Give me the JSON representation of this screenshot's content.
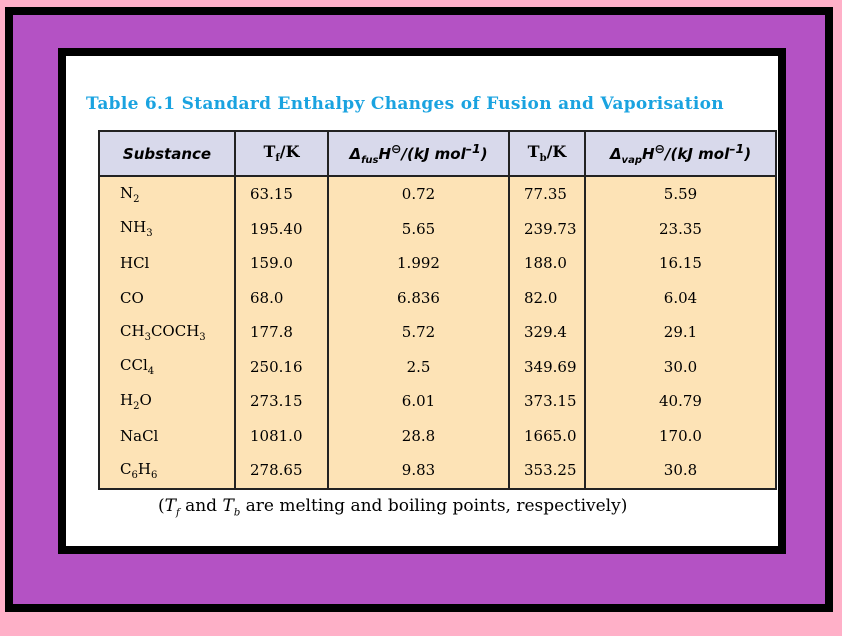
{
  "title": "Table 6.1  Standard Enthalpy Changes of Fusion and Vaporisation",
  "headers": [
    [
      {
        "t": "Substance"
      }
    ],
    [
      {
        "t": "T"
      },
      {
        "t": "f",
        "s": 1
      },
      {
        "t": "/K"
      }
    ],
    [
      {
        "t": "Δ"
      },
      {
        "t": "fus",
        "s": 1
      },
      {
        "t": "H"
      },
      {
        "t": "⊖",
        "p": 1
      },
      {
        "t": "/(kJ mol"
      },
      {
        "t": "–1",
        "p": 1
      },
      {
        "t": ")"
      }
    ],
    [
      {
        "t": "T"
      },
      {
        "t": "b",
        "s": 1
      },
      {
        "t": "/K"
      }
    ],
    [
      {
        "t": "Δ"
      },
      {
        "t": "vap",
        "s": 1
      },
      {
        "t": "H"
      },
      {
        "t": "⊖",
        "p": 1
      },
      {
        "t": "/(kJ mol"
      },
      {
        "t": "–1",
        "p": 1
      },
      {
        "t": ")"
      }
    ]
  ],
  "rows": [
    {
      "substance": [
        {
          "t": "N"
        },
        {
          "t": "2",
          "s": 1
        }
      ],
      "tf": "63.15",
      "hfus": "0.72",
      "tb": "77.35",
      "hvap": "5.59"
    },
    {
      "substance": [
        {
          "t": "NH"
        },
        {
          "t": "3",
          "s": 1
        }
      ],
      "tf": "195.40",
      "hfus": "5.65",
      "tb": "239.73",
      "hvap": "23.35"
    },
    {
      "substance": [
        {
          "t": "HCl"
        }
      ],
      "tf": "159.0",
      "hfus": "1.992",
      "tb": "188.0",
      "hvap": "16.15"
    },
    {
      "substance": [
        {
          "t": "CO"
        }
      ],
      "tf": "68.0",
      "hfus": "6.836",
      "tb": "82.0",
      "hvap": "6.04"
    },
    {
      "substance": [
        {
          "t": "CH"
        },
        {
          "t": "3",
          "s": 1
        },
        {
          "t": "COCH"
        },
        {
          "t": "3",
          "s": 1
        }
      ],
      "tf": "177.8",
      "hfus": "5.72",
      "tb": "329.4",
      "hvap": "29.1"
    },
    {
      "substance": [
        {
          "t": "CCl"
        },
        {
          "t": "4",
          "s": 1
        }
      ],
      "tf": "250.16",
      "hfus": "2.5",
      "tb": "349.69",
      "hvap": "30.0"
    },
    {
      "substance": [
        {
          "t": "H"
        },
        {
          "t": "2",
          "s": 1
        },
        {
          "t": "O"
        }
      ],
      "tf": "273.15",
      "hfus": "6.01",
      "tb": "373.15",
      "hvap": "40.79"
    },
    {
      "substance": [
        {
          "t": "NaCl"
        }
      ],
      "tf": "1081.0",
      "hfus": "28.8",
      "tb": "1665.0",
      "hvap": "170.0"
    },
    {
      "substance": [
        {
          "t": "C"
        },
        {
          "t": "6",
          "s": 1
        },
        {
          "t": "H"
        },
        {
          "t": "6",
          "s": 1
        }
      ],
      "tf": "278.65",
      "hfus": "9.83",
      "tb": "353.25",
      "hvap": "30.8"
    }
  ],
  "caption": [
    {
      "t": "("
    },
    {
      "t": "T",
      "i": 1
    },
    {
      "t": "f",
      "s": 1,
      "i": 1
    },
    {
      "t": " and "
    },
    {
      "t": "T",
      "i": 1
    },
    {
      "t": "b",
      "s": 1,
      "i": 1
    },
    {
      "t": " are melting and boiling points, respectively)"
    }
  ]
}
